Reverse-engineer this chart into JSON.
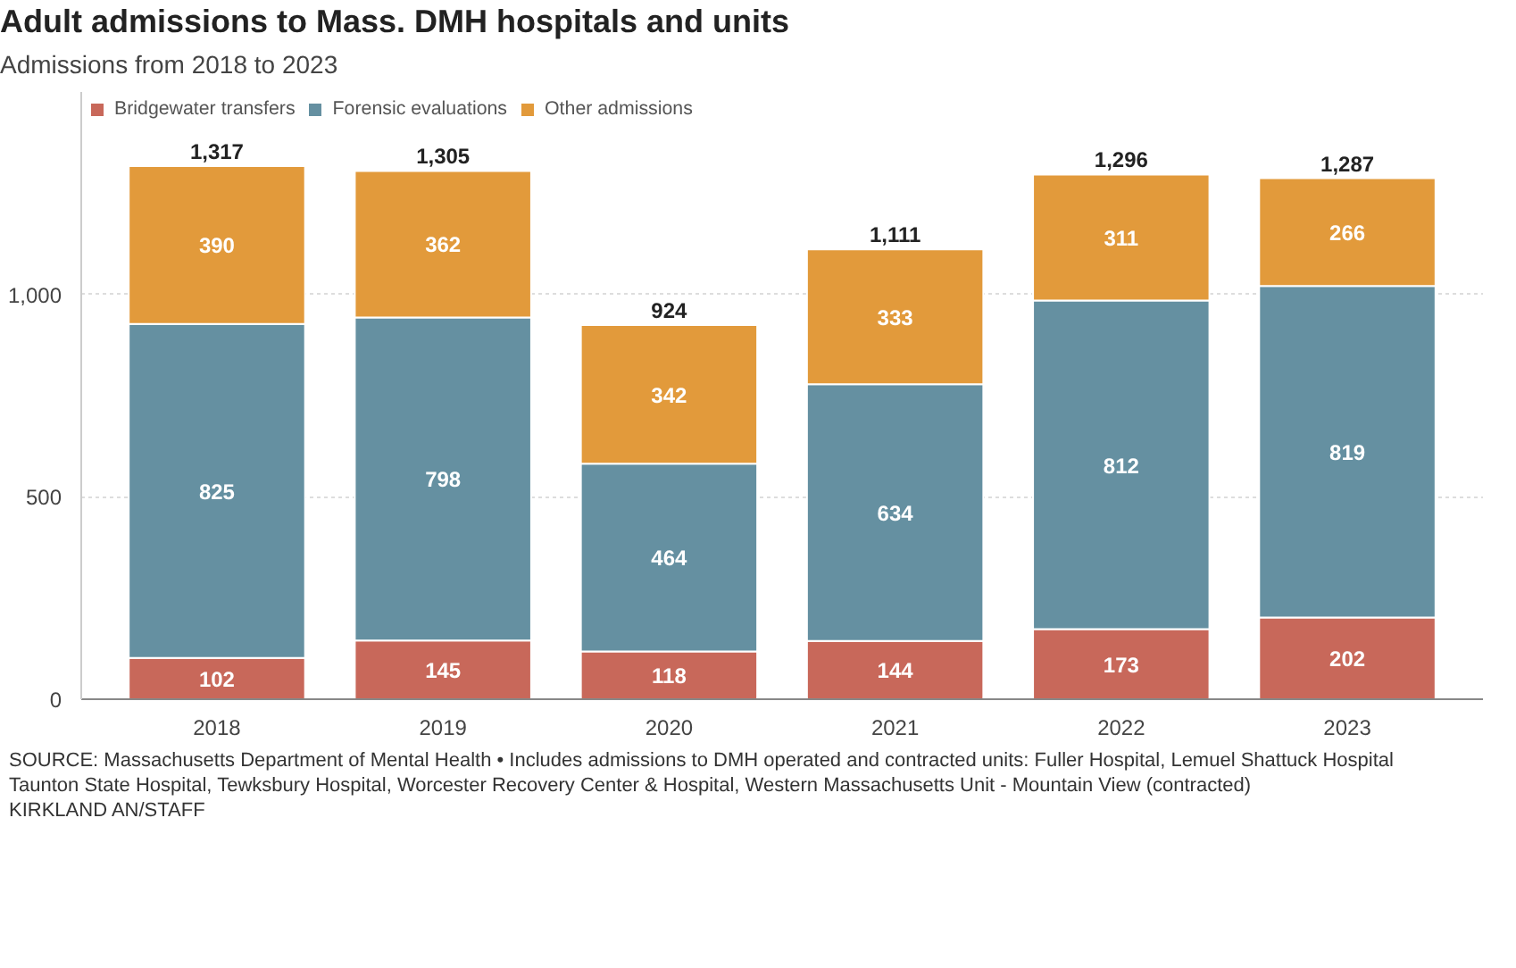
{
  "chart_data": {
    "type": "bar",
    "stacked": true,
    "title": "Adult admissions to Mass. DMH hospitals and units",
    "subtitle": "Admissions from 2018 to 2023",
    "categories": [
      "2018",
      "2019",
      "2020",
      "2021",
      "2022",
      "2023"
    ],
    "series": [
      {
        "name": "Bridgewater transfers",
        "color": "#c8685a",
        "values": [
          102,
          145,
          118,
          144,
          173,
          202
        ]
      },
      {
        "name": "Forensic evaluations",
        "color": "#6590a1",
        "values": [
          825,
          798,
          464,
          634,
          812,
          819
        ]
      },
      {
        "name": "Other admissions",
        "color": "#e29a3b",
        "values": [
          390,
          362,
          342,
          333,
          311,
          266
        ]
      }
    ],
    "data_labels": true,
    "totals": [
      "1,317",
      "1,305",
      "924",
      "1,111",
      "1,296",
      "1,287"
    ],
    "ylim": [
      0,
      1500
    ],
    "yticks": [
      0,
      500,
      {
        "value": 1000,
        "label": "1,000"
      }
    ],
    "grid": "y",
    "legend": "top left",
    "annotations": [
      "SOURCE: Massachusetts Department of Mental Health • Includes admissions to DMH operated and contracted units: Fuller Hospital, Lemuel Shattuck Hospital",
      "Taunton State Hospital, Tewksbury Hospital, Worcester Recovery Center & Hospital, Western Massachusetts Unit - Mountain View (contracted)",
      "KIRKLAND AN/STAFF"
    ]
  }
}
